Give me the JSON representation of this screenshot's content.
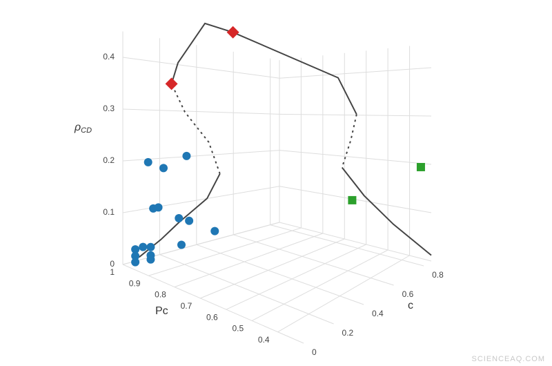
{
  "chart_data": {
    "type": "scatter3d",
    "xlabel": "Pc",
    "ylabel": "c",
    "zlabel": "ρ",
    "zlabel_sub": "CD",
    "watermark": "SCIENCEAQ.COM",
    "xlim": [
      1,
      0.3
    ],
    "ylim": [
      0,
      0.85
    ],
    "zlim": [
      0,
      0.45
    ],
    "xticks": [
      1,
      0.9,
      0.8,
      0.7,
      0.6,
      0.5,
      0.4
    ],
    "yticks": [
      0,
      0.2,
      0.4,
      0.6,
      0.8
    ],
    "zticks": [
      0,
      0.1,
      0.2,
      0.3,
      0.4
    ],
    "grid": true,
    "series": [
      {
        "mode": "lines",
        "dash": false,
        "color": "#444444",
        "x": [
          0.965,
          0.88,
          0.81,
          0.7,
          0.65,
          null,
          0.87,
          0.855,
          0.89,
          0.9,
          0.63,
          0.58,
          null,
          0.646,
          0.557,
          0.424,
          0.3
        ],
        "y": [
          0.04,
          0.04,
          0.04,
          0.04,
          0.04,
          null,
          0.085,
          0.1,
          0.3,
          0.47,
          0.72,
          0.765,
          null,
          0.765,
          0.78,
          0.78,
          0.85
        ],
        "z": [
          0.018,
          0.07,
          0.117,
          0.184,
          0.24,
          null,
          0.373,
          0.417,
          0.5,
          0.49,
          0.395,
          0.31,
          null,
          0.186,
          0.127,
          0.077,
          0.012
        ]
      },
      {
        "mode": "lines",
        "dash": true,
        "color": "#444444",
        "x": [
          0.65,
          0.7,
          0.8,
          0.87,
          null,
          0.58,
          0.61,
          0.646
        ],
        "y": [
          0.04,
          0.05,
          0.06,
          0.085,
          null,
          0.765,
          0.77,
          0.765
        ],
        "z": [
          0.24,
          0.29,
          0.33,
          0.373,
          null,
          0.31,
          0.25,
          0.186
        ]
      },
      {
        "mode": "markers",
        "marker": "circle",
        "color": "#1f77b4",
        "x": [
          0.93,
          0.87,
          0.78,
          0.91,
          0.89,
          0.81,
          0.77,
          0.8,
          0.67,
          0.98,
          0.95,
          0.92,
          0.98,
          0.92,
          0.92,
          0.98
        ],
        "y": [
          0.04,
          0.04,
          0.04,
          0.04,
          0.04,
          0.04,
          0.04,
          0.04,
          0.04,
          0.04,
          0.04,
          0.04,
          0.04,
          0.04,
          0.04,
          0.04
        ],
        "z": [
          0.21,
          0.21,
          0.25,
          0.124,
          0.13,
          0.125,
          0.128,
          0.076,
          0.128,
          0.03,
          0.041,
          0.047,
          0.017,
          0.031,
          0.023,
          0.005
        ]
      },
      {
        "mode": "markers",
        "marker": "diamond",
        "color": "#d62728",
        "x": [
          0.87,
          0.9
        ],
        "y": [
          0.085,
          0.47
        ],
        "z": [
          0.373,
          0.49
        ]
      },
      {
        "mode": "markers",
        "marker": "square",
        "color": "#2ca02c",
        "x": [
          0.32,
          0.6
        ],
        "y": [
          0.81,
          0.765
        ],
        "z": [
          0.2,
          0.115
        ]
      }
    ]
  }
}
